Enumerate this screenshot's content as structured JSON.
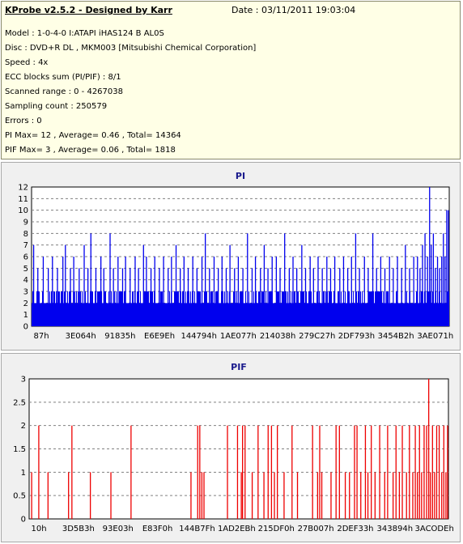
{
  "header": {
    "title": "KProbe v2.5.2 - Designed by Karr",
    "date": "Date : 03/11/2011 19:03:04",
    "lines": [
      "Model : 1-0-4-0 I:ATAPI   iHAS124   B      AL0S",
      "Disc : DVD+R DL , MKM003 [Mitsubishi Chemical Corporation]",
      "Speed : 4x",
      "ECC blocks sum (PI/PIF) : 8/1",
      "Scanned range : 0 - 4267038",
      "Sampling count : 250579",
      "Errors : 0",
      "PI Max= 12 , Average= 0.46 , Total= 14364",
      "PIF Max= 3 , Average= 0.06 , Total= 1818"
    ]
  },
  "colors": {
    "pi": "#0000ee",
    "pif": "#ee0000",
    "plot_bg": "#ffffff",
    "panel_bg": "#f0f0f0",
    "title": "#1a1a8c"
  },
  "chart_data": [
    {
      "type": "bar",
      "title": "PI",
      "ylim": [
        0,
        12
      ],
      "yticks": [
        "0",
        "1",
        "2",
        "3",
        "4",
        "5",
        "6",
        "7",
        "8",
        "9",
        "10",
        "11",
        "12"
      ],
      "xticks": [
        "87h",
        "3E064h",
        "91835h",
        "E6E9Eh",
        "144794h",
        "1AE077h",
        "214038h",
        "279C27h",
        "2DF793h",
        "3454B2h",
        "3AE071h"
      ],
      "grid": true,
      "x_end": 4267038,
      "values_note_free": true,
      "baseline": [
        2,
        3
      ],
      "spikes": [
        [
          0.5,
          7
        ],
        [
          1.5,
          5
        ],
        [
          2.8,
          6
        ],
        [
          4.0,
          5
        ],
        [
          5.0,
          6
        ],
        [
          6.2,
          5
        ],
        [
          7.5,
          6
        ],
        [
          8.1,
          7
        ],
        [
          9.3,
          5
        ],
        [
          10.1,
          6
        ],
        [
          11.4,
          5
        ],
        [
          12.6,
          7
        ],
        [
          13.5,
          5
        ],
        [
          14.2,
          8
        ],
        [
          15.4,
          5
        ],
        [
          16.6,
          6
        ],
        [
          17.3,
          5
        ],
        [
          18.8,
          8
        ],
        [
          19.6,
          5
        ],
        [
          20.7,
          6
        ],
        [
          21.8,
          5
        ],
        [
          22.5,
          6
        ],
        [
          23.6,
          5
        ],
        [
          24.8,
          6
        ],
        [
          25.6,
          5
        ],
        [
          26.8,
          7
        ],
        [
          27.5,
          6
        ],
        [
          28.6,
          5
        ],
        [
          29.5,
          6
        ],
        [
          30.6,
          5
        ],
        [
          31.6,
          6
        ],
        [
          32.7,
          5
        ],
        [
          33.5,
          6
        ],
        [
          34.6,
          7
        ],
        [
          35.6,
          5
        ],
        [
          36.5,
          6
        ],
        [
          37.5,
          5
        ],
        [
          38.6,
          6
        ],
        [
          39.6,
          5
        ],
        [
          40.8,
          6
        ],
        [
          41.6,
          8
        ],
        [
          42.6,
          5
        ],
        [
          43.7,
          6
        ],
        [
          44.7,
          5
        ],
        [
          45.6,
          6
        ],
        [
          46.6,
          5
        ],
        [
          47.5,
          7
        ],
        [
          48.6,
          5
        ],
        [
          49.5,
          6
        ],
        [
          50.6,
          5
        ],
        [
          51.7,
          8
        ],
        [
          52.8,
          5
        ],
        [
          53.6,
          6
        ],
        [
          54.8,
          5
        ],
        [
          55.7,
          7
        ],
        [
          56.6,
          5
        ],
        [
          57.6,
          6
        ],
        [
          58.6,
          6
        ],
        [
          59.5,
          5
        ],
        [
          60.6,
          8
        ],
        [
          61.7,
          5
        ],
        [
          62.6,
          6
        ],
        [
          63.5,
          5
        ],
        [
          64.7,
          7
        ],
        [
          65.6,
          5
        ],
        [
          66.7,
          6
        ],
        [
          67.5,
          5
        ],
        [
          68.6,
          6
        ],
        [
          69.6,
          5
        ],
        [
          70.7,
          6
        ],
        [
          71.6,
          5
        ],
        [
          72.6,
          6
        ],
        [
          73.8,
          5
        ],
        [
          74.7,
          6
        ],
        [
          75.7,
          5
        ],
        [
          76.6,
          6
        ],
        [
          77.6,
          8
        ],
        [
          78.5,
          5
        ],
        [
          79.7,
          6
        ],
        [
          80.6,
          5
        ],
        [
          81.7,
          8
        ],
        [
          82.6,
          5
        ],
        [
          83.6,
          6
        ],
        [
          84.6,
          5
        ],
        [
          85.7,
          6
        ],
        [
          86.6,
          5
        ],
        [
          87.6,
          6
        ],
        [
          88.6,
          5
        ],
        [
          89.5,
          7
        ],
        [
          90.5,
          5
        ],
        [
          91.5,
          6
        ],
        [
          92.4,
          6
        ],
        [
          93.0,
          5
        ],
        [
          93.6,
          7
        ],
        [
          94.2,
          8
        ],
        [
          94.8,
          6
        ],
        [
          95.3,
          12
        ],
        [
          95.7,
          7
        ],
        [
          96.2,
          8
        ],
        [
          96.7,
          5
        ],
        [
          97.2,
          6
        ],
        [
          97.7,
          5
        ],
        [
          98.2,
          6
        ],
        [
          98.6,
          8
        ],
        [
          99.0,
          6
        ],
        [
          99.4,
          10
        ],
        [
          99.8,
          10
        ]
      ]
    },
    {
      "type": "bar",
      "title": "PIF",
      "ylim": [
        0,
        3
      ],
      "yticks": [
        "0",
        "0.5",
        "1",
        "1.5",
        "2",
        "2.5",
        "3"
      ],
      "xticks": [
        "10h",
        "3D5B3h",
        "93E03h",
        "E83F0h",
        "144B7Fh",
        "1AD2EBh",
        "215DF0h",
        "27B007h",
        "2DEF33h",
        "343894h",
        "3ACODEh"
      ],
      "grid": true,
      "spikes": [
        [
          0.6,
          1
        ],
        [
          2.3,
          2
        ],
        [
          4.5,
          1
        ],
        [
          9.4,
          1
        ],
        [
          10.2,
          2
        ],
        [
          14.6,
          1
        ],
        [
          19.5,
          1
        ],
        [
          24.3,
          2
        ],
        [
          38.6,
          1
        ],
        [
          40.2,
          2
        ],
        [
          40.7,
          2
        ],
        [
          41.2,
          1
        ],
        [
          41.7,
          1
        ],
        [
          47.3,
          2
        ],
        [
          49.7,
          2
        ],
        [
          50.6,
          1
        ],
        [
          50.9,
          2
        ],
        [
          51.5,
          2
        ],
        [
          53.2,
          1
        ],
        [
          54.6,
          2
        ],
        [
          56.0,
          1
        ],
        [
          57.0,
          2
        ],
        [
          57.8,
          2
        ],
        [
          58.5,
          1
        ],
        [
          59.2,
          2
        ],
        [
          60.8,
          1
        ],
        [
          62.7,
          2
        ],
        [
          64.0,
          1
        ],
        [
          67.6,
          2
        ],
        [
          68.8,
          1
        ],
        [
          69.3,
          2
        ],
        [
          69.8,
          1
        ],
        [
          72.0,
          1
        ],
        [
          73.2,
          2
        ],
        [
          74.0,
          2
        ],
        [
          75.4,
          1
        ],
        [
          76.4,
          1
        ],
        [
          77.6,
          2
        ],
        [
          78.2,
          2
        ],
        [
          79.1,
          1
        ],
        [
          80.2,
          2
        ],
        [
          80.8,
          1
        ],
        [
          81.6,
          2
        ],
        [
          82.5,
          1
        ],
        [
          83.6,
          2
        ],
        [
          84.8,
          1
        ],
        [
          85.5,
          2
        ],
        [
          86.8,
          1
        ],
        [
          87.5,
          2
        ],
        [
          88.3,
          1
        ],
        [
          89.0,
          2
        ],
        [
          90.0,
          1
        ],
        [
          90.7,
          2
        ],
        [
          91.5,
          1
        ],
        [
          92.1,
          2
        ],
        [
          92.6,
          1
        ],
        [
          93.1,
          2
        ],
        [
          93.6,
          1
        ],
        [
          94.2,
          2
        ],
        [
          94.8,
          2
        ],
        [
          95.3,
          3
        ],
        [
          95.7,
          1
        ],
        [
          96.2,
          2
        ],
        [
          96.7,
          1
        ],
        [
          97.2,
          2
        ],
        [
          97.8,
          2
        ],
        [
          98.4,
          1
        ],
        [
          98.9,
          2
        ],
        [
          99.4,
          1
        ],
        [
          99.8,
          2
        ]
      ]
    }
  ]
}
